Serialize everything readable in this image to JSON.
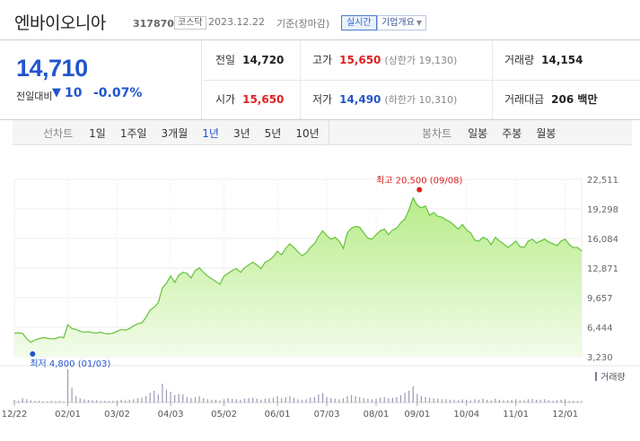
{
  "header": {
    "stock_name": "엔바이오니아",
    "stock_code": "317870",
    "market": "코스닥",
    "date": "2023.12.22",
    "date_basis": "기준(장마감)",
    "realtime_label": "실시간",
    "overview_label": "기업개요"
  },
  "summary": {
    "current_price": "14,710",
    "prev_label": "전일대비",
    "change_amount": "10",
    "change_rate": "-0.07%",
    "prev_close_label": "전일",
    "prev_close": "14,720",
    "high_label": "고가",
    "high": "15,650",
    "upper_limit": "(상한가 19,130)",
    "volume_label": "거래량",
    "volume": "14,154",
    "open_label": "시가",
    "open": "15,650",
    "low_label": "저가",
    "low": "14,490",
    "lower_limit": "(하한가 10,310)",
    "amount_label": "거래대금",
    "amount": "206 백만"
  },
  "tabs": {
    "line_label": "선차트",
    "line_periods": [
      "1일",
      "1주일",
      "3개월",
      "1년",
      "3년",
      "5년",
      "10년"
    ],
    "active_period": "1년",
    "candle_label": "봉차트",
    "candle_periods": [
      "일봉",
      "주봉",
      "월봉"
    ]
  },
  "chart_data": {
    "type": "area",
    "y_ticks": [
      "22,511",
      "19,298",
      "16,084",
      "12,871",
      "9,657",
      "6,444",
      "3,230"
    ],
    "ylim": [
      3230,
      22511
    ],
    "x_ticks": [
      "12/22",
      "02/01",
      "03/02",
      "04/03",
      "05/02",
      "06/01",
      "07/03",
      "08/01",
      "09/01",
      "10/04",
      "11/01",
      "12/01"
    ],
    "high_annotation": "최고 20,500 (09/08)",
    "low_annotation": "최저 4,800 (01/03)",
    "volume_legend": "거래량",
    "colors": {
      "line": "#6cc644",
      "fill_top": "#b8ec8a",
      "fill_bottom": "#f3fceb",
      "high": "#e02020",
      "low": "#2255cc",
      "volume": "#9a9ab4"
    },
    "series": [
      {
        "values": [
          5780,
          5830,
          5760,
          5200,
          4800,
          5050,
          5200,
          5300,
          5250,
          5180,
          5200,
          5380,
          5300,
          6700,
          6300,
          6200,
          6000,
          5900,
          5950,
          5850,
          5800,
          5900,
          5750,
          5700,
          5800,
          6000,
          6200,
          6100,
          6300,
          6600,
          6800,
          6900,
          7500,
          8300,
          8600,
          9100,
          10700,
          11200,
          12000,
          11300,
          12100,
          12400,
          12300,
          11800,
          12600,
          12900,
          12400,
          12000,
          11700,
          11400,
          11100,
          12000,
          12300,
          12600,
          12800,
          12400,
          12900,
          13200,
          13500,
          13200,
          12800,
          13500,
          13700,
          14100,
          14700,
          14300,
          15000,
          15500,
          15100,
          14600,
          14200,
          14500,
          15100,
          15500,
          16300,
          16900,
          16400,
          16000,
          16200,
          15800,
          15000,
          16700,
          17200,
          17400,
          17300,
          16700,
          16100,
          16000,
          16500,
          16900,
          17100,
          16500,
          17000,
          17200,
          17800,
          18200,
          19200,
          20500,
          19700,
          19400,
          19600,
          18600,
          18900,
          18500,
          18400,
          18100,
          17900,
          17500,
          17100,
          17600,
          17000,
          16700,
          15900,
          15800,
          16200,
          16000,
          15400,
          16200,
          15800,
          15500,
          15100,
          15400,
          15800,
          15200,
          15100,
          15800,
          16000,
          15600,
          15800,
          16000,
          15700,
          15500,
          15300,
          15800,
          16000,
          15400,
          15100,
          15100,
          14710
        ]
      }
    ],
    "volumes": [
      5,
      3,
      8,
      6,
      4,
      3,
      3,
      2,
      2,
      3,
      2,
      3,
      2,
      62,
      28,
      12,
      8,
      6,
      5,
      4,
      4,
      3,
      3,
      3,
      3,
      4,
      5,
      4,
      5,
      6,
      8,
      9,
      12,
      18,
      22,
      15,
      35,
      24,
      20,
      14,
      16,
      15,
      10,
      8,
      10,
      12,
      8,
      6,
      5,
      5,
      4,
      6,
      8,
      7,
      6,
      5,
      7,
      8,
      9,
      7,
      5,
      7,
      8,
      9,
      12,
      8,
      10,
      12,
      9,
      6,
      5,
      6,
      9,
      10,
      15,
      18,
      10,
      8,
      7,
      6,
      8,
      12,
      14,
      12,
      10,
      8,
      7,
      6,
      7,
      9,
      10,
      8,
      9,
      10,
      14,
      18,
      22,
      30,
      16,
      12,
      10,
      9,
      8,
      7,
      6,
      6,
      5,
      5,
      4,
      6,
      5,
      4,
      6,
      5,
      7,
      5,
      4,
      7,
      5,
      4,
      4,
      5,
      6,
      4,
      4,
      6,
      7,
      5,
      5,
      6,
      4,
      3,
      4,
      5,
      6,
      3,
      3,
      3,
      3
    ],
    "x_tick_index": [
      0,
      13,
      25,
      38,
      51,
      64,
      76,
      88,
      98,
      110,
      122,
      134
    ],
    "high_index": 97,
    "low_index": 4
  }
}
